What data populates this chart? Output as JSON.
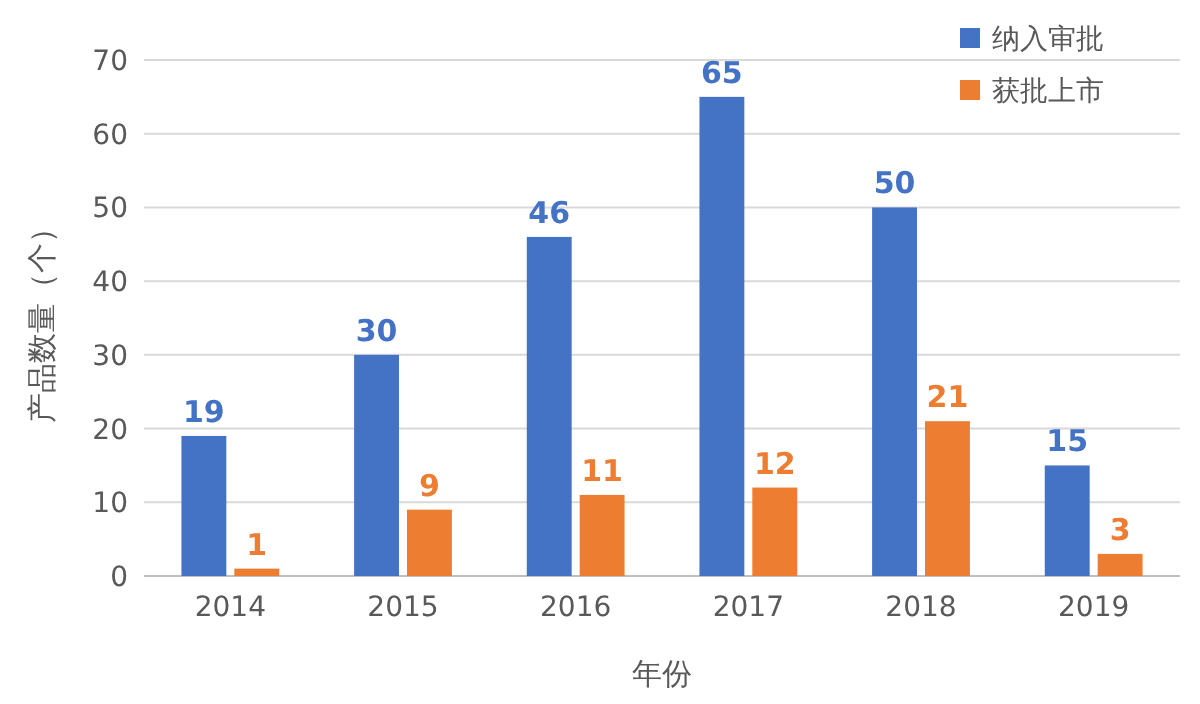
{
  "chart_data": {
    "type": "bar",
    "xlabel": "年份",
    "ylabel": "产品数量（个）",
    "categories": [
      "2014",
      "2015",
      "2016",
      "2017",
      "2018",
      "2019"
    ],
    "series": [
      {
        "name": "纳入审批",
        "color": "#4472c4",
        "values": [
          19,
          30,
          46,
          65,
          50,
          15
        ]
      },
      {
        "name": "获批上市",
        "color": "#ed7d31",
        "values": [
          1,
          9,
          11,
          12,
          21,
          3
        ]
      }
    ],
    "ylim": [
      0,
      70
    ],
    "yticks": [
      0,
      10,
      20,
      30,
      40,
      50,
      60,
      70
    ],
    "grid": "y",
    "legend": "top right",
    "data_labels": true
  }
}
